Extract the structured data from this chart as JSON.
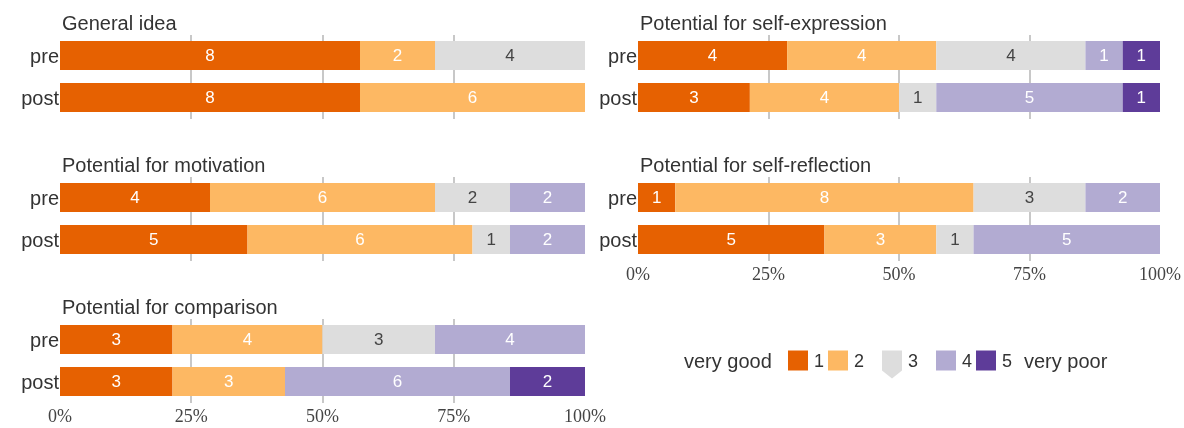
{
  "chart_data": [
    {
      "type": "bar",
      "orientation": "horizontal",
      "stacked": true,
      "title": "General idea",
      "categories": [
        "pre",
        "post"
      ],
      "series": [
        {
          "name": "1",
          "color": "#e66101",
          "values": [
            8,
            8
          ]
        },
        {
          "name": "2",
          "color": "#fdb863",
          "values": [
            2,
            6
          ]
        },
        {
          "name": "3",
          "color": "#dddddd",
          "values": [
            4,
            null
          ]
        }
      ],
      "xlim": [
        0,
        14
      ],
      "xticks": [
        {
          "value": 3.5,
          "label": null
        },
        {
          "value": 7,
          "label": null
        },
        {
          "value": 10.5,
          "label": null
        }
      ],
      "grid": "x",
      "data_labels": true,
      "tick_labels": "y",
      "legend": "bottom right"
    },
    {
      "type": "bar",
      "orientation": "horizontal",
      "stacked": true,
      "title": "Potential for self-expression",
      "categories": [
        "pre",
        "post"
      ],
      "series": [
        {
          "name": "1",
          "color": "#e66101",
          "values": [
            4,
            3
          ]
        },
        {
          "name": "2",
          "color": "#fdb863",
          "values": [
            4,
            4
          ]
        },
        {
          "name": "3",
          "color": "#dddddd",
          "values": [
            4,
            1
          ]
        },
        {
          "name": "4",
          "color": "#b2abd2",
          "values": [
            1,
            5
          ]
        },
        {
          "name": "5",
          "color": "#5e3c99",
          "values": [
            1,
            1
          ]
        }
      ],
      "xlim": [
        0,
        14
      ],
      "xticks": [
        {
          "value": 3.5,
          "label": null
        },
        {
          "value": 7,
          "label": null
        },
        {
          "value": 10.5,
          "label": null
        }
      ],
      "grid": "x",
      "data_labels": true,
      "tick_labels": "y",
      "legend": "bottom right"
    },
    {
      "type": "bar",
      "orientation": "horizontal",
      "stacked": true,
      "title": "Potential for motivation",
      "categories": [
        "pre",
        "post"
      ],
      "series": [
        {
          "name": "1",
          "color": "#e66101",
          "values": [
            4,
            5
          ]
        },
        {
          "name": "2",
          "color": "#fdb863",
          "values": [
            6,
            6
          ]
        },
        {
          "name": "3",
          "color": "#dddddd",
          "values": [
            2,
            1
          ]
        },
        {
          "name": "4",
          "color": "#b2abd2",
          "values": [
            2,
            2
          ]
        }
      ],
      "xlim": [
        0,
        14
      ],
      "xticks": [
        {
          "value": 3.5,
          "label": null
        },
        {
          "value": 7,
          "label": null
        },
        {
          "value": 10.5,
          "label": null
        }
      ],
      "grid": "x",
      "data_labels": true,
      "tick_labels": "y",
      "legend": "bottom right"
    },
    {
      "type": "bar",
      "orientation": "horizontal",
      "stacked": true,
      "title": "Potential for self-reflection",
      "categories": [
        "pre",
        "post"
      ],
      "series": [
        {
          "name": "1",
          "color": "#e66101",
          "values": [
            1,
            5
          ]
        },
        {
          "name": "2",
          "color": "#fdb863",
          "values": [
            8,
            3
          ]
        },
        {
          "name": "3",
          "color": "#dddddd",
          "values": [
            3,
            1
          ]
        },
        {
          "name": "4",
          "color": "#b2abd2",
          "values": [
            2,
            5
          ]
        }
      ],
      "xlim": [
        0,
        14
      ],
      "x2lim": [
        0,
        100
      ],
      "x2ticks": [
        {
          "value": 0,
          "label": "0%"
        },
        {
          "value": 25,
          "label": "25%"
        },
        {
          "value": 50,
          "label": "50%"
        },
        {
          "value": 75,
          "label": "75%"
        },
        {
          "value": 100,
          "label": "100%"
        }
      ],
      "grid": "x",
      "data_labels": true,
      "legend": "bottom right"
    },
    {
      "type": "bar",
      "orientation": "horizontal",
      "stacked": true,
      "title": "Potential for comparison",
      "categories": [
        "pre",
        "post"
      ],
      "series": [
        {
          "name": "1",
          "color": "#e66101",
          "values": [
            3,
            3
          ]
        },
        {
          "name": "2",
          "color": "#fdb863",
          "values": [
            4,
            3
          ]
        },
        {
          "name": "3",
          "color": "#dddddd",
          "values": [
            3,
            null
          ]
        },
        {
          "name": "4",
          "color": "#b2abd2",
          "values": [
            4,
            6
          ]
        },
        {
          "name": "5",
          "color": "#5e3c99",
          "values": [
            null,
            2
          ]
        }
      ],
      "xlim": [
        0,
        14
      ],
      "x2lim": [
        0,
        100
      ],
      "x2ticks": [
        {
          "value": 0,
          "label": "0%"
        },
        {
          "value": 25,
          "label": "25%"
        },
        {
          "value": 50,
          "label": "50%"
        },
        {
          "value": 75,
          "label": "75%"
        },
        {
          "value": 100,
          "label": "100%"
        }
      ],
      "grid": "x",
      "data_labels": true,
      "legend": "bottom right",
      "annotations": [
        "very good",
        "very poor"
      ]
    }
  ]
}
